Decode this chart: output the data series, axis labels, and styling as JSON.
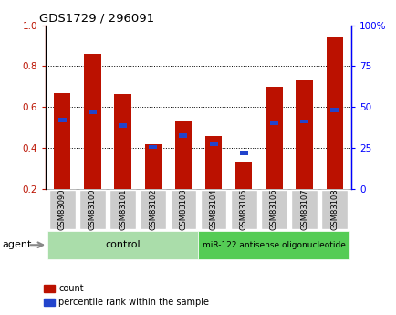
{
  "title": "GDS1729 / 296091",
  "categories": [
    "GSM83090",
    "GSM83100",
    "GSM83101",
    "GSM83102",
    "GSM83103",
    "GSM83104",
    "GSM83105",
    "GSM83106",
    "GSM83107",
    "GSM83108"
  ],
  "red_values": [
    0.67,
    0.86,
    0.665,
    0.42,
    0.535,
    0.46,
    0.335,
    0.7,
    0.73,
    0.945
  ],
  "blue_values": [
    0.535,
    0.575,
    0.51,
    0.405,
    0.46,
    0.42,
    0.375,
    0.525,
    0.53,
    0.585
  ],
  "ylim_left": [
    0.2,
    1.0
  ],
  "ylim_right": [
    0,
    100
  ],
  "yticks_left": [
    0.2,
    0.4,
    0.6,
    0.8,
    1.0
  ],
  "yticks_right": [
    0,
    25,
    50,
    75,
    100
  ],
  "ytick_labels_right": [
    "0",
    "25",
    "50",
    "75",
    "100%"
  ],
  "control_count": 5,
  "treatment_count": 5,
  "red_color": "#bb1100",
  "blue_color": "#2244cc",
  "bar_width": 0.55,
  "label_bg": "#cccccc",
  "control_bg": "#aaddaa",
  "treatment_bg": "#55cc55",
  "agent_text": "agent",
  "legend_count": "count",
  "legend_percentile": "percentile rank within the sample",
  "control_label": "control",
  "treatment_label": "miR-122 antisense oligonucleotide"
}
